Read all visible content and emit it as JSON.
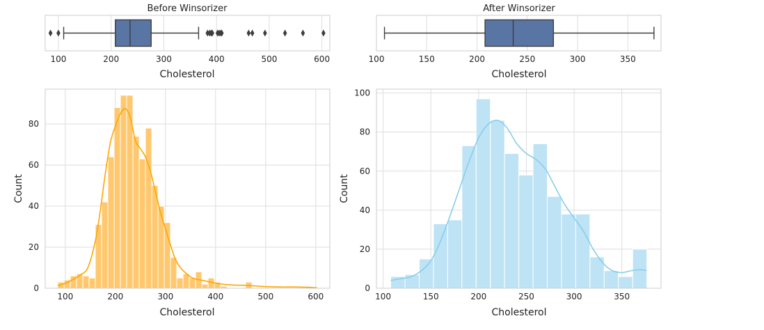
{
  "chart_data": [
    {
      "type": "boxplot",
      "title": "Before Winsorizer",
      "xlabel": "Cholesterol",
      "xlim": [
        75,
        615
      ],
      "xticks": [
        100,
        200,
        300,
        400,
        500,
        600
      ],
      "box": {
        "whisker_low": 110,
        "q1": 208,
        "median": 236,
        "q3": 276,
        "whisker_high": 366,
        "color": "#5975a4"
      },
      "outliers": [
        85,
        100,
        383,
        387,
        390,
        392,
        402,
        405,
        408,
        410,
        461,
        468,
        492,
        530,
        564,
        603
      ]
    },
    {
      "type": "boxplot",
      "title": "After Winsorizer",
      "xlabel": "Cholesterol",
      "xlim": [
        100,
        383
      ],
      "xticks": [
        100,
        150,
        200,
        250,
        300,
        350
      ],
      "box": {
        "whisker_low": 108,
        "q1": 208,
        "median": 236,
        "q3": 276,
        "whisker_high": 376,
        "color": "#5975a4"
      },
      "outliers": []
    },
    {
      "type": "histogram",
      "xlabel": "Cholesterol",
      "ylabel": "Count",
      "xlim": [
        60,
        628
      ],
      "ylim": [
        0,
        97
      ],
      "xticks": [
        100,
        200,
        300,
        400,
        500,
        600
      ],
      "yticks": [
        0,
        20,
        40,
        60,
        80
      ],
      "bar_color": "#ffc86e",
      "kde_color": "#ffa500",
      "bins": [
        {
          "x0": 85,
          "x1": 97.5,
          "count": 3
        },
        {
          "x0": 97.5,
          "x1": 110,
          "count": 4
        },
        {
          "x0": 110,
          "x1": 122.5,
          "count": 6
        },
        {
          "x0": 122.5,
          "x1": 135,
          "count": 7
        },
        {
          "x0": 135,
          "x1": 147.5,
          "count": 6
        },
        {
          "x0": 147.5,
          "x1": 160,
          "count": 5
        },
        {
          "x0": 160,
          "x1": 172.5,
          "count": 31
        },
        {
          "x0": 172.5,
          "x1": 185,
          "count": 42
        },
        {
          "x0": 185,
          "x1": 197.5,
          "count": 64
        },
        {
          "x0": 197.5,
          "x1": 210,
          "count": 88
        },
        {
          "x0": 210,
          "x1": 222.5,
          "count": 94
        },
        {
          "x0": 222.5,
          "x1": 235,
          "count": 94
        },
        {
          "x0": 235,
          "x1": 247.5,
          "count": 74
        },
        {
          "x0": 247.5,
          "x1": 260,
          "count": 63
        },
        {
          "x0": 260,
          "x1": 272.5,
          "count": 78
        },
        {
          "x0": 272.5,
          "x1": 285,
          "count": 50
        },
        {
          "x0": 285,
          "x1": 297.5,
          "count": 40
        },
        {
          "x0": 297.5,
          "x1": 310,
          "count": 32
        },
        {
          "x0": 310,
          "x1": 322.5,
          "count": 15
        },
        {
          "x0": 322.5,
          "x1": 335,
          "count": 5
        },
        {
          "x0": 335,
          "x1": 347.5,
          "count": 7
        },
        {
          "x0": 347.5,
          "x1": 360,
          "count": 5
        },
        {
          "x0": 360,
          "x1": 372.5,
          "count": 8
        },
        {
          "x0": 372.5,
          "x1": 385,
          "count": 2
        },
        {
          "x0": 385,
          "x1": 397.5,
          "count": 5
        },
        {
          "x0": 397.5,
          "x1": 410,
          "count": 3
        },
        {
          "x0": 410,
          "x1": 422.5,
          "count": 1
        },
        {
          "x0": 460,
          "x1": 472.5,
          "count": 3
        }
      ],
      "kde": [
        [
          85,
          1.2
        ],
        [
          100,
          2.4
        ],
        [
          115,
          4.2
        ],
        [
          130,
          6.5
        ],
        [
          145,
          10
        ],
        [
          160,
          23
        ],
        [
          170,
          38
        ],
        [
          180,
          56
        ],
        [
          190,
          71
        ],
        [
          200,
          79
        ],
        [
          210,
          85
        ],
        [
          220,
          87.5
        ],
        [
          230,
          83
        ],
        [
          240,
          72
        ],
        [
          250,
          68
        ],
        [
          260,
          64
        ],
        [
          270,
          57
        ],
        [
          280,
          47
        ],
        [
          290,
          37
        ],
        [
          300,
          29
        ],
        [
          310,
          21
        ],
        [
          320,
          14
        ],
        [
          330,
          10
        ],
        [
          340,
          7.5
        ],
        [
          350,
          5.5
        ],
        [
          360,
          4.5
        ],
        [
          370,
          4
        ],
        [
          380,
          3.5
        ],
        [
          390,
          3
        ],
        [
          400,
          2.5
        ],
        [
          420,
          1.8
        ],
        [
          440,
          1.5
        ],
        [
          460,
          1.4
        ],
        [
          480,
          1.1
        ],
        [
          500,
          0.8
        ],
        [
          530,
          0.6
        ],
        [
          560,
          0.6
        ],
        [
          590,
          0.4
        ],
        [
          603,
          0.2
        ]
      ]
    },
    {
      "type": "histogram",
      "xlabel": "Cholesterol",
      "ylabel": "Count",
      "xlim": [
        93,
        391
      ],
      "ylim": [
        0,
        102
      ],
      "xticks": [
        100,
        150,
        200,
        250,
        300,
        350
      ],
      "yticks": [
        0,
        20,
        40,
        60,
        80,
        100
      ],
      "bar_color": "#bde3f5",
      "kde_color": "#87ceeb",
      "bins": [
        {
          "x0": 108,
          "x1": 122.9,
          "count": 6
        },
        {
          "x0": 122.9,
          "x1": 137.8,
          "count": 7
        },
        {
          "x0": 137.8,
          "x1": 152.7,
          "count": 15
        },
        {
          "x0": 152.7,
          "x1": 167.6,
          "count": 33
        },
        {
          "x0": 167.6,
          "x1": 182.5,
          "count": 35
        },
        {
          "x0": 182.5,
          "x1": 197.4,
          "count": 73
        },
        {
          "x0": 197.4,
          "x1": 212.3,
          "count": 97
        },
        {
          "x0": 212.3,
          "x1": 227.2,
          "count": 86
        },
        {
          "x0": 227.2,
          "x1": 242.1,
          "count": 69
        },
        {
          "x0": 242.1,
          "x1": 257.0,
          "count": 58
        },
        {
          "x0": 257.0,
          "x1": 271.9,
          "count": 74
        },
        {
          "x0": 271.9,
          "x1": 286.8,
          "count": 47
        },
        {
          "x0": 286.8,
          "x1": 301.7,
          "count": 38
        },
        {
          "x0": 301.7,
          "x1": 316.6,
          "count": 38
        },
        {
          "x0": 316.6,
          "x1": 331.5,
          "count": 16
        },
        {
          "x0": 331.5,
          "x1": 346.4,
          "count": 9
        },
        {
          "x0": 346.4,
          "x1": 361.3,
          "count": 6
        },
        {
          "x0": 361.3,
          "x1": 376.2,
          "count": 20
        }
      ],
      "kde": [
        [
          108,
          4
        ],
        [
          120,
          5
        ],
        [
          130,
          6
        ],
        [
          140,
          9
        ],
        [
          150,
          14
        ],
        [
          160,
          24
        ],
        [
          170,
          37
        ],
        [
          180,
          51
        ],
        [
          190,
          65
        ],
        [
          200,
          77
        ],
        [
          210,
          84
        ],
        [
          220,
          86
        ],
        [
          230,
          82
        ],
        [
          240,
          74
        ],
        [
          250,
          69
        ],
        [
          260,
          66
        ],
        [
          270,
          61
        ],
        [
          280,
          52
        ],
        [
          290,
          43
        ],
        [
          300,
          36
        ],
        [
          310,
          29
        ],
        [
          320,
          20
        ],
        [
          330,
          13
        ],
        [
          340,
          9
        ],
        [
          350,
          8
        ],
        [
          360,
          9
        ],
        [
          370,
          9.5
        ],
        [
          376,
          9
        ]
      ]
    }
  ]
}
